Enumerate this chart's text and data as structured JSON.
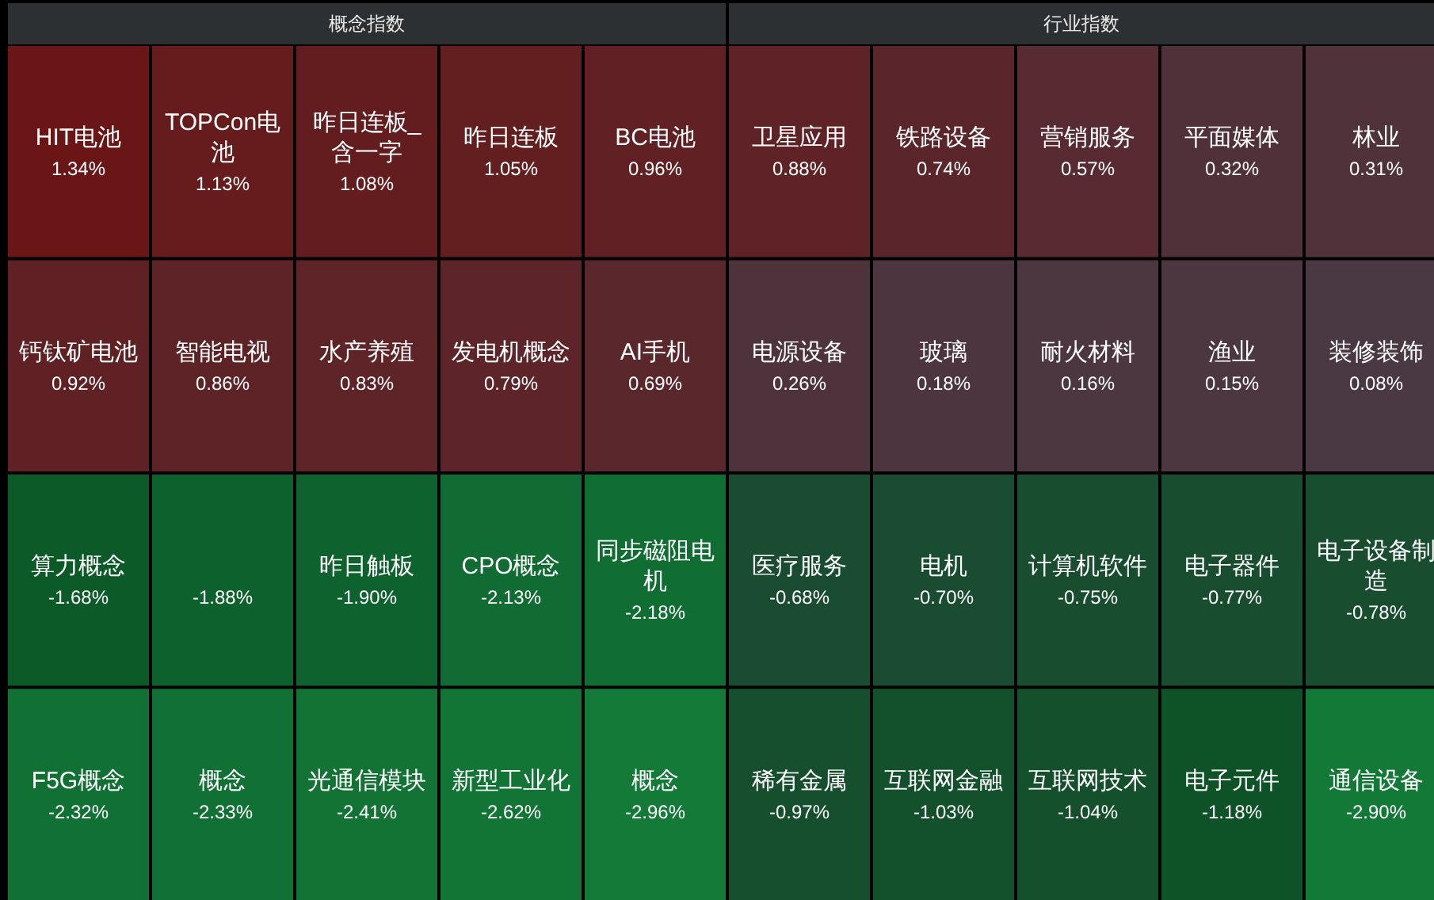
{
  "chart_data": [
    {
      "type": "other",
      "title": "概念指数",
      "categories": [
        "HIT电池",
        "TOPCon电池",
        "昨日连板_含一字",
        "昨日连板",
        "BC电池",
        "钙钛矿电池",
        "智能电视",
        "水产养殖",
        "发电机概念",
        "AI手机",
        "算力概念",
        null,
        "昨日触板",
        "CPO概念",
        "同步磁阻电机",
        "F5G概念",
        "概念",
        "光通信模块",
        "新型工业化",
        "概念"
      ],
      "values": [
        1.34,
        1.13,
        1.08,
        1.05,
        0.96,
        0.92,
        0.86,
        0.83,
        0.79,
        0.69,
        -1.68,
        -1.88,
        -1.9,
        -2.13,
        -2.18,
        -2.32,
        -2.33,
        -2.41,
        -2.62,
        -2.96
      ],
      "value_labels": [
        "1.34%",
        "1.13%",
        "1.08%",
        "1.05%",
        "0.96%",
        "0.92%",
        "0.86%",
        "0.83%",
        "0.79%",
        "0.69%",
        "-1.68%",
        "-1.88%",
        "-1.90%",
        "-2.13%",
        "-2.18%",
        "-2.32%",
        "-2.33%",
        "-2.41%",
        "-2.62%",
        "-2.96%"
      ]
    },
    {
      "type": "other",
      "title": "行业指数",
      "categories": [
        "卫星应用",
        "铁路设备",
        "营销服务",
        "平面媒体",
        "林业",
        "电源设备",
        "玻璃",
        "耐火材料",
        "渔业",
        "装修装饰",
        "医疗服务",
        "电机",
        "计算机软件",
        "电子器件",
        "电子设备制造",
        "稀有金属",
        "互联网金融",
        "互联网技术",
        "电子元件",
        "通信设备"
      ],
      "values": [
        0.88,
        0.74,
        0.57,
        0.32,
        0.31,
        0.26,
        0.18,
        0.16,
        0.15,
        0.08,
        -0.68,
        -0.7,
        -0.75,
        -0.77,
        -0.78,
        -0.97,
        -1.03,
        -1.04,
        -1.18,
        -2.9
      ],
      "value_labels": [
        "0.88%",
        "0.74%",
        "0.57%",
        "0.32%",
        "0.31%",
        "0.26%",
        "0.18%",
        "0.16%",
        "0.15%",
        "0.08%",
        "-0.68%",
        "-0.70%",
        "-0.75%",
        "-0.77%",
        "-0.78%",
        "-0.97%",
        "-1.03%",
        "-1.04%",
        "-1.18%",
        "-2.90%"
      ]
    }
  ]
}
